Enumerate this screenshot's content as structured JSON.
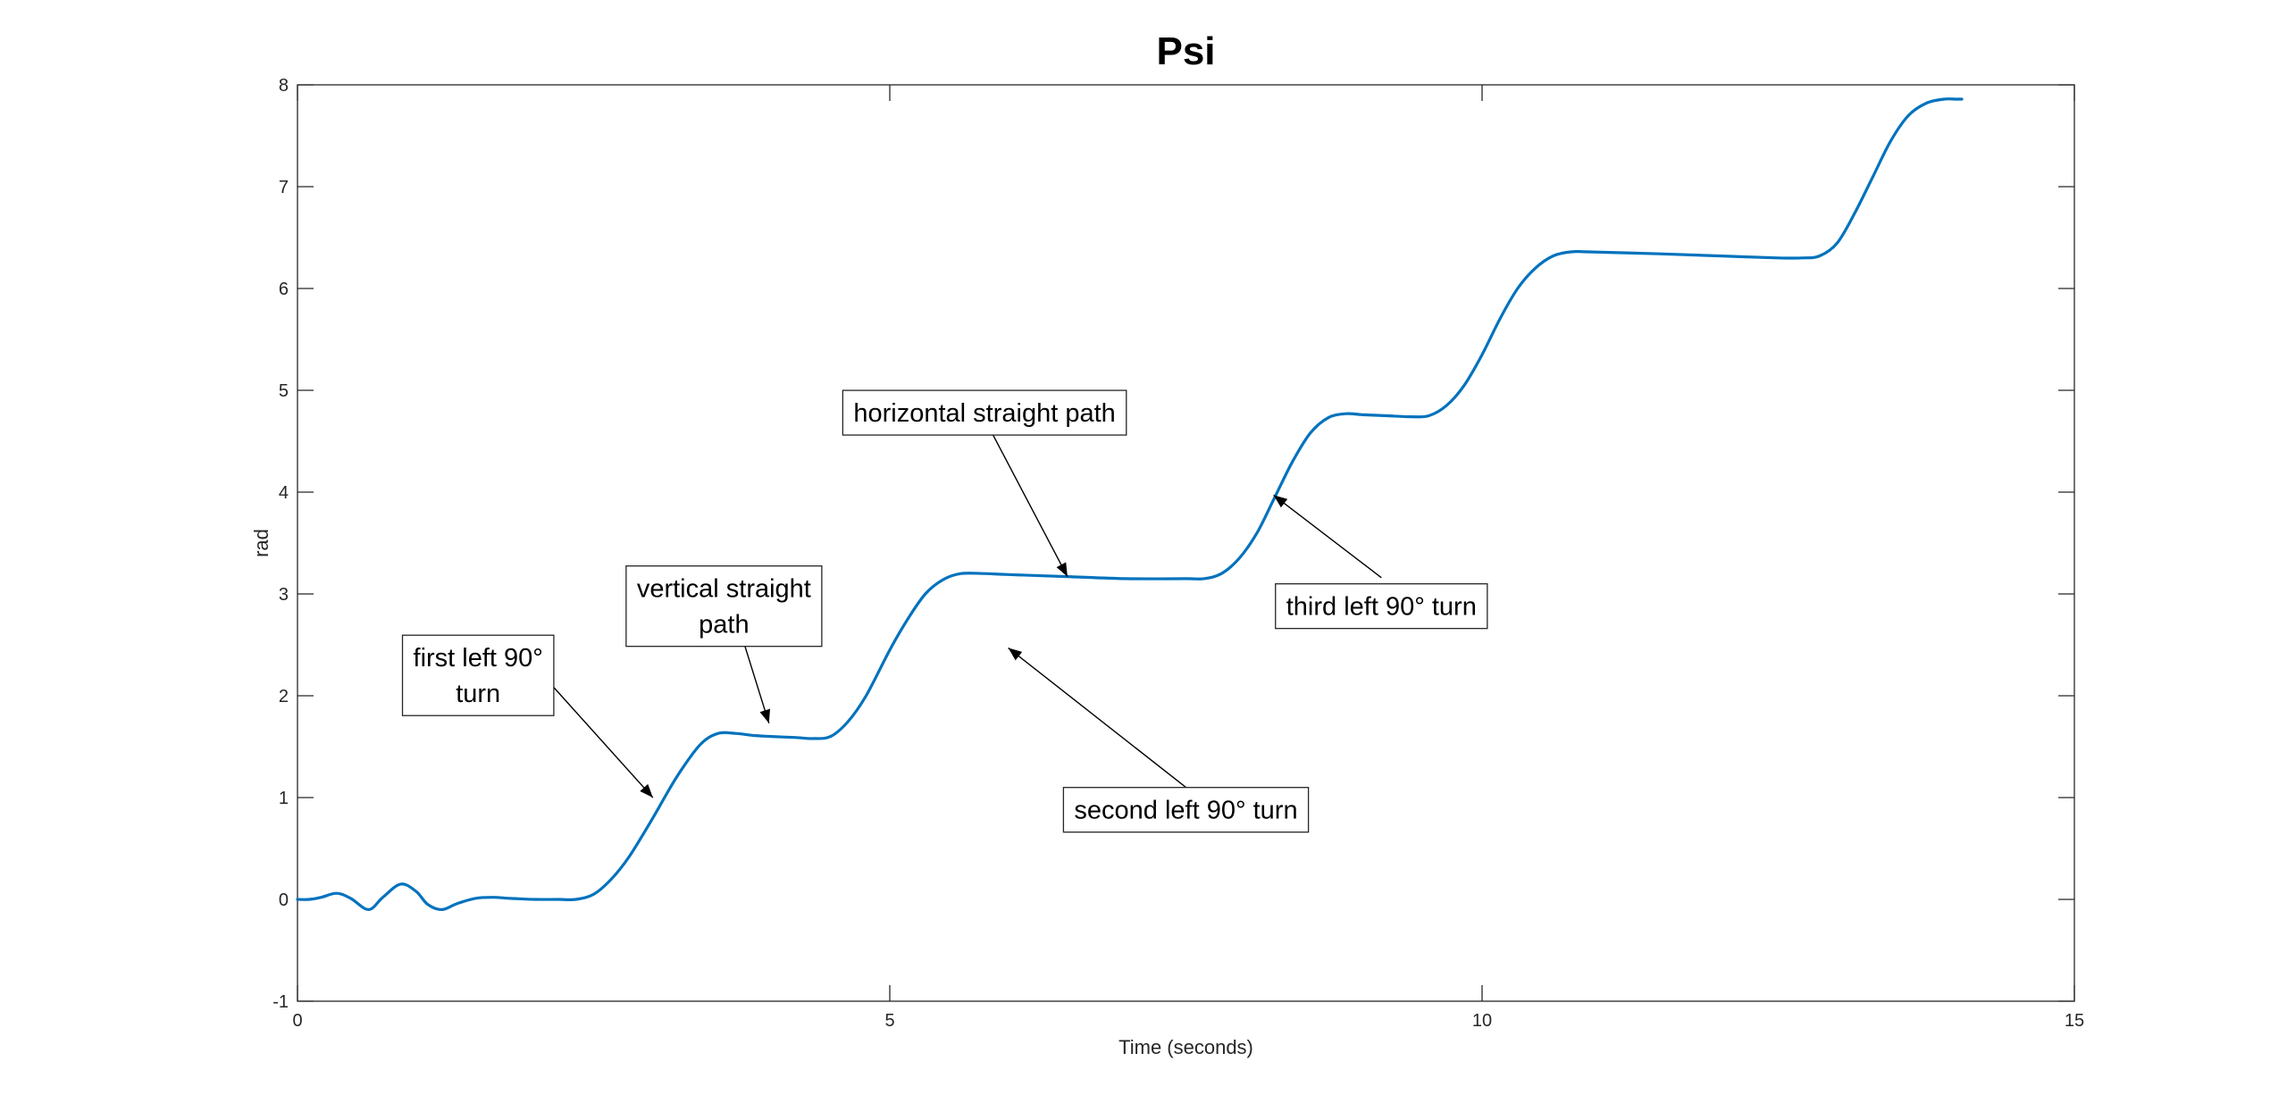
{
  "chart_data": {
    "type": "line",
    "title": "Psi",
    "xlabel": "Time (seconds)",
    "ylabel": "rad",
    "xlim": [
      0,
      15
    ],
    "ylim": [
      -1,
      8
    ],
    "xticks": [
      0,
      5,
      10,
      15
    ],
    "yticks": [
      -1,
      0,
      1,
      2,
      3,
      4,
      5,
      6,
      7,
      8
    ],
    "grid": false,
    "box": true,
    "line_color": "#0072BD",
    "series": [
      {
        "x": [
          0,
          0.1,
          0.2,
          0.33,
          0.45,
          0.6,
          0.72,
          0.87,
          1.0,
          1.1,
          1.22,
          1.35,
          1.5,
          1.65,
          1.8,
          2.0,
          2.2,
          2.35,
          2.5,
          2.65,
          2.8,
          3.0,
          3.2,
          3.4,
          3.55,
          3.7,
          3.85,
          4.0,
          4.2,
          4.35,
          4.5,
          4.65,
          4.8,
          5.0,
          5.15,
          5.3,
          5.45,
          5.6,
          5.8,
          6.0,
          6.5,
          7.0,
          7.5,
          7.65,
          7.8,
          7.95,
          8.1,
          8.25,
          8.4,
          8.55,
          8.7,
          8.85,
          9.0,
          9.2,
          9.4,
          9.55,
          9.7,
          9.85,
          10.0,
          10.15,
          10.3,
          10.45,
          10.6,
          10.75,
          10.9,
          11.5,
          12.0,
          12.5,
          12.7,
          12.85,
          13.0,
          13.15,
          13.3,
          13.45,
          13.6,
          13.75,
          13.9,
          14.0,
          14.05
        ],
        "y": [
          0,
          0,
          0.02,
          0.06,
          0.01,
          -0.1,
          0.02,
          0.15,
          0.08,
          -0.05,
          -0.1,
          -0.04,
          0.01,
          0.02,
          0.01,
          0,
          0,
          0,
          0.05,
          0.2,
          0.42,
          0.8,
          1.2,
          1.52,
          1.63,
          1.63,
          1.61,
          1.6,
          1.59,
          1.58,
          1.6,
          1.75,
          2.0,
          2.45,
          2.75,
          3.0,
          3.14,
          3.2,
          3.2,
          3.19,
          3.17,
          3.15,
          3.15,
          3.15,
          3.2,
          3.35,
          3.6,
          3.95,
          4.3,
          4.58,
          4.73,
          4.77,
          4.76,
          4.75,
          4.74,
          4.75,
          4.85,
          5.05,
          5.35,
          5.7,
          6.0,
          6.2,
          6.32,
          6.36,
          6.36,
          6.34,
          6.32,
          6.3,
          6.3,
          6.32,
          6.45,
          6.75,
          7.1,
          7.45,
          7.7,
          7.82,
          7.86,
          7.86,
          7.86
        ]
      }
    ],
    "annotations": [
      {
        "lines": [
          "first left 90°",
          "turn"
        ],
        "box_x": 1.525,
        "box_y": 2.2,
        "arrow_from": [
          2.15,
          2.1
        ],
        "arrow_to": [
          3.0,
          1.0
        ]
      },
      {
        "lines": [
          "vertical straight",
          "path"
        ],
        "box_x": 3.6,
        "box_y": 2.88,
        "arrow_from": [
          3.68,
          2.85
        ],
        "arrow_to": [
          3.98,
          1.73
        ]
      },
      {
        "lines": [
          "horizontal straight path"
        ],
        "box_x": 5.8,
        "box_y": 4.78,
        "arrow_from": [
          5.8,
          4.72
        ],
        "arrow_to": [
          6.5,
          3.17
        ]
      },
      {
        "lines": [
          "second left 90° turn"
        ],
        "box_x": 7.5,
        "box_y": 0.88,
        "arrow_from": [
          7.5,
          1.1
        ],
        "arrow_to": [
          6.0,
          2.47
        ]
      },
      {
        "lines": [
          "third left 90° turn"
        ],
        "box_x": 9.15,
        "box_y": 2.88,
        "arrow_from": [
          9.15,
          3.16
        ],
        "arrow_to": [
          8.24,
          3.97
        ]
      }
    ]
  }
}
